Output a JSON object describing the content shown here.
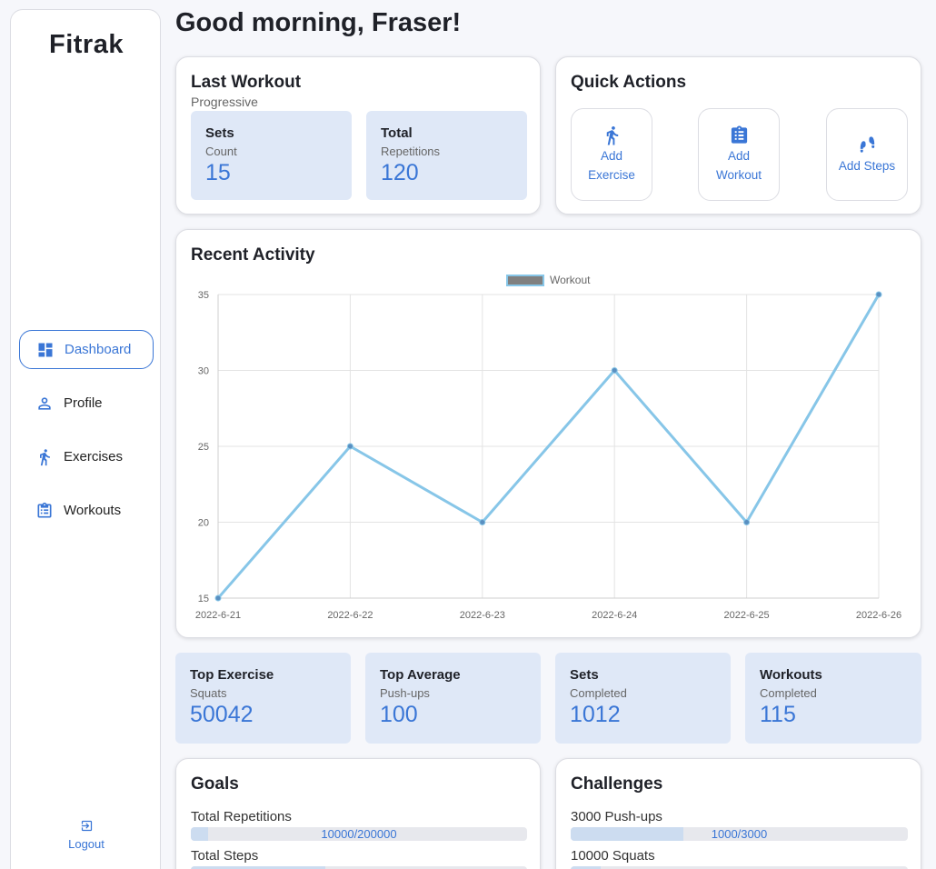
{
  "sidebar": {
    "brand": "Fitrak",
    "items": [
      {
        "label": "Dashboard",
        "icon": "dashboard-icon",
        "active": true
      },
      {
        "label": "Profile",
        "icon": "person-icon"
      },
      {
        "label": "Exercises",
        "icon": "running-icon"
      },
      {
        "label": "Workouts",
        "icon": "clipboard-icon"
      }
    ],
    "logout": "Logout"
  },
  "greeting": "Good morning, Fraser!",
  "last_workout": {
    "title": "Last Workout",
    "subtitle": "Progressive",
    "stats": [
      {
        "title": "Sets",
        "sub": "Count",
        "value": "15"
      },
      {
        "title": "Total",
        "sub": "Repetitions",
        "value": "120"
      }
    ]
  },
  "quick_actions": {
    "title": "Quick Actions",
    "actions": [
      {
        "line1": "Add",
        "line2": "Exercise",
        "icon": "running-icon"
      },
      {
        "line1": "Add",
        "line2": "Workout",
        "icon": "clipboard-icon"
      },
      {
        "line1": "Add Steps",
        "line2": "",
        "icon": "footsteps-icon"
      }
    ]
  },
  "recent_activity": {
    "title": "Recent Activity"
  },
  "chart_data": {
    "type": "line",
    "x": [
      "2022-6-21",
      "2022-6-22",
      "2022-6-23",
      "2022-6-24",
      "2022-6-25",
      "2022-6-26"
    ],
    "series": [
      {
        "name": "Workout",
        "values": [
          15,
          25,
          20,
          30,
          20,
          35
        ]
      }
    ],
    "ylim": [
      15,
      35
    ],
    "yticks": [
      15,
      20,
      25,
      30,
      35
    ],
    "grid": true,
    "legend": "top-center",
    "line_color": "#87c6e8",
    "point_color": "#5a8fc0"
  },
  "summary_stats": [
    {
      "title": "Top Exercise",
      "sub": "Squats",
      "value": "50042"
    },
    {
      "title": "Top Average",
      "sub": "Push-ups",
      "value": "100"
    },
    {
      "title": "Sets",
      "sub": "Completed",
      "value": "1012"
    },
    {
      "title": "Workouts",
      "sub": "Completed",
      "value": "115"
    }
  ],
  "goals": {
    "title": "Goals",
    "items": [
      {
        "label": "Total Repetitions",
        "progress_text": "10000/200000",
        "fraction": 0.05
      },
      {
        "label": "Total Steps",
        "progress_text": "",
        "fraction": 0.4
      }
    ]
  },
  "challenges": {
    "title": "Challenges",
    "items": [
      {
        "label": "3000 Push-ups",
        "progress_text": "1000/3000",
        "fraction": 0.333
      },
      {
        "label": "10000 Squats",
        "progress_text": "",
        "fraction": 0.09
      }
    ]
  },
  "colors": {
    "accent": "#3a76d6",
    "stat_bg": "#dfe8f7",
    "line": "#87c6e8"
  }
}
